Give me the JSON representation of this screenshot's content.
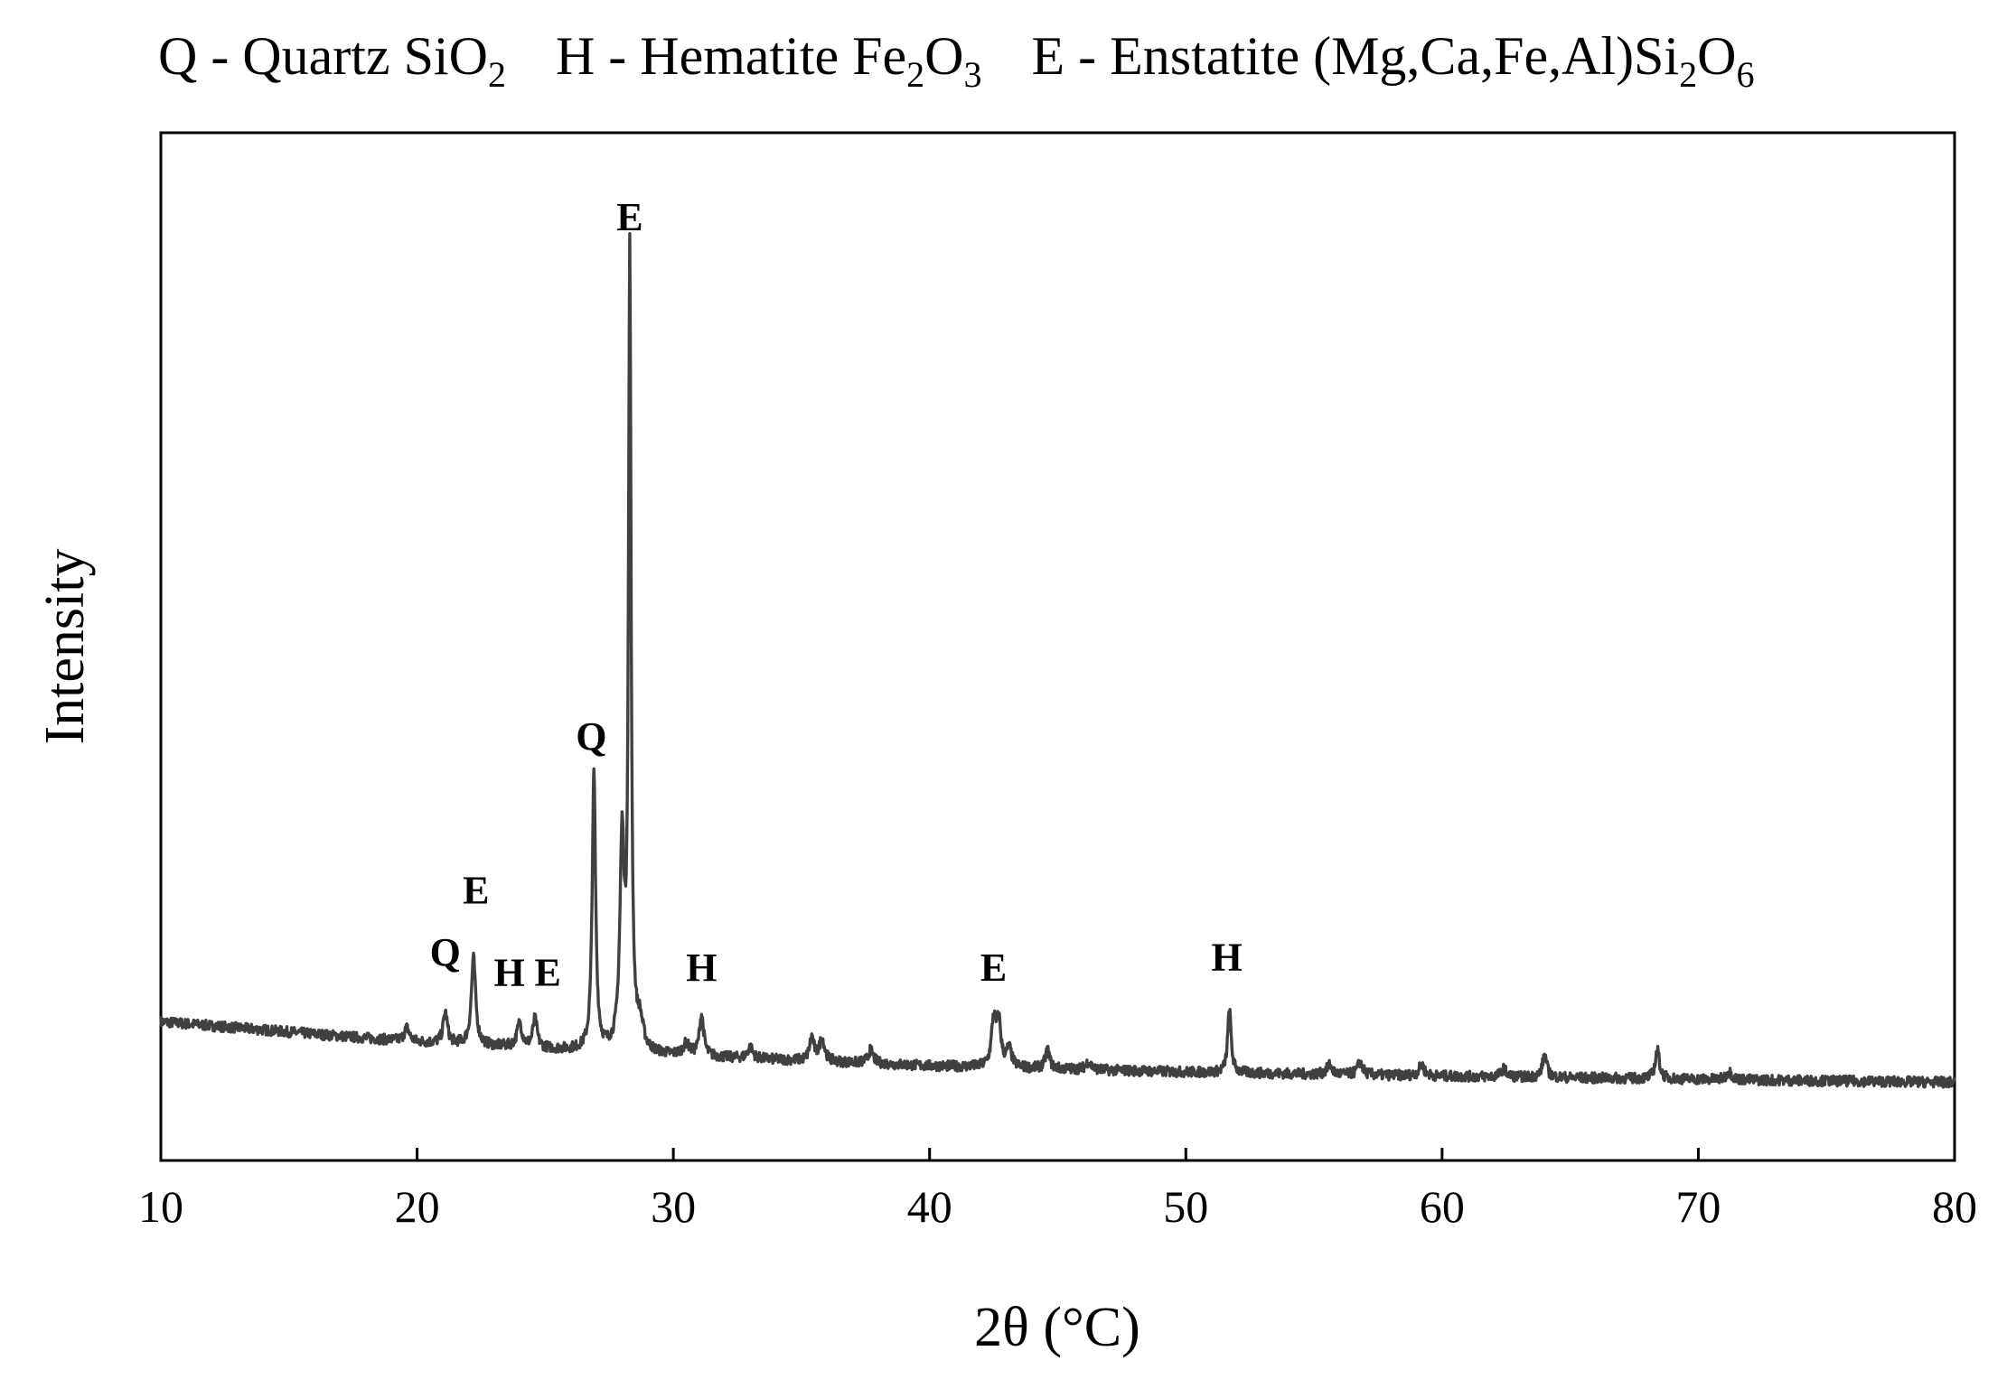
{
  "legend": {
    "items": [
      {
        "symbol": "Q",
        "name": "Quartz",
        "formula": [
          [
            "Si",
            ""
          ],
          [
            "O",
            "2"
          ]
        ]
      },
      {
        "symbol": "H",
        "name": "Hematite",
        "formula": [
          [
            "Fe",
            "2"
          ],
          [
            "O",
            "3"
          ]
        ]
      },
      {
        "symbol": "E",
        "name": "Enstatite",
        "formula": [
          [
            "(Mg,Ca,Fe,Al)Si",
            "2"
          ],
          [
            "O",
            "6"
          ]
        ]
      }
    ]
  },
  "chart_data": {
    "type": "line",
    "title": "",
    "xlabel": "2θ (°C)",
    "ylabel": "Intensity",
    "xlim": [
      10,
      80
    ],
    "ylim": [
      0,
      100
    ],
    "xticks": [
      10,
      20,
      30,
      40,
      50,
      60,
      70,
      80
    ],
    "yticks_visible": false,
    "grid": false,
    "line_color": "#404040",
    "baseline": {
      "x": [
        10,
        20,
        30,
        40,
        50,
        60,
        70,
        80
      ],
      "y": [
        13.5,
        11.5,
        10.2,
        9.2,
        8.6,
        8.2,
        7.9,
        7.6
      ]
    },
    "peaks": [
      {
        "x": 19.6,
        "height": 1.3,
        "width": 0.12
      },
      {
        "x": 21.1,
        "height": 3.0,
        "width": 0.1
      },
      {
        "x": 22.2,
        "height": 8.5,
        "width": 0.1
      },
      {
        "x": 24.0,
        "height": 2.3,
        "width": 0.12
      },
      {
        "x": 24.6,
        "height": 2.8,
        "width": 0.1
      },
      {
        "x": 26.9,
        "height": 27.0,
        "width": 0.08
      },
      {
        "x": 28.0,
        "height": 20.0,
        "width": 0.1
      },
      {
        "x": 28.3,
        "height": 77.0,
        "width": 0.06
      },
      {
        "x": 28.7,
        "height": 2.5,
        "width": 0.15
      },
      {
        "x": 30.5,
        "height": 1.1,
        "width": 0.15
      },
      {
        "x": 31.1,
        "height": 4.0,
        "width": 0.1
      },
      {
        "x": 33.0,
        "height": 1.1,
        "width": 0.12
      },
      {
        "x": 35.4,
        "height": 2.3,
        "width": 0.1
      },
      {
        "x": 35.8,
        "height": 2.2,
        "width": 0.12
      },
      {
        "x": 37.7,
        "height": 1.3,
        "width": 0.12
      },
      {
        "x": 42.5,
        "height": 4.5,
        "width": 0.1
      },
      {
        "x": 42.7,
        "height": 4.2,
        "width": 0.1
      },
      {
        "x": 43.1,
        "height": 1.8,
        "width": 0.12
      },
      {
        "x": 44.6,
        "height": 1.8,
        "width": 0.1
      },
      {
        "x": 46.2,
        "height": 0.8,
        "width": 0.12
      },
      {
        "x": 51.7,
        "height": 6.2,
        "width": 0.08
      },
      {
        "x": 55.6,
        "height": 0.9,
        "width": 0.12
      },
      {
        "x": 56.8,
        "height": 1.2,
        "width": 0.12
      },
      {
        "x": 59.2,
        "height": 1.1,
        "width": 0.12
      },
      {
        "x": 62.4,
        "height": 0.8,
        "width": 0.12
      },
      {
        "x": 64.0,
        "height": 2.2,
        "width": 0.1
      },
      {
        "x": 68.4,
        "height": 2.8,
        "width": 0.1
      },
      {
        "x": 71.2,
        "height": 0.8,
        "width": 0.12
      }
    ],
    "peak_labels": [
      {
        "text": "Q",
        "x": 21.1,
        "intensity": 19
      },
      {
        "text": "E",
        "x": 22.3,
        "intensity": 25
      },
      {
        "text": "H",
        "x": 23.6,
        "intensity": 17
      },
      {
        "text": "E",
        "x": 25.1,
        "intensity": 17
      },
      {
        "text": "Q",
        "x": 26.8,
        "intensity": 40
      },
      {
        "text": "E",
        "x": 28.3,
        "intensity": 90.5
      },
      {
        "text": "H",
        "x": 31.1,
        "intensity": 17.5
      },
      {
        "text": "E",
        "x": 42.5,
        "intensity": 17.5
      },
      {
        "text": "H",
        "x": 51.6,
        "intensity": 18.5
      }
    ]
  }
}
